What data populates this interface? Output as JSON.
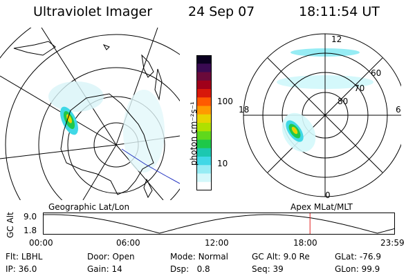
{
  "header": {
    "title": "Ultraviolet Imager",
    "date": "24 Sep 07",
    "time": "18:11:54 UT"
  },
  "colorbar": {
    "unit_label": "photon cm⁻²s⁻¹",
    "ticks": [
      "100",
      "10"
    ],
    "colors": [
      "#0b0020",
      "#3a0a52",
      "#6a0a3a",
      "#a0001a",
      "#d8180a",
      "#ff5a00",
      "#ff9a00",
      "#e8d400",
      "#b0e000",
      "#60d81c",
      "#1ec84a",
      "#1cc8b0",
      "#40d8e6",
      "#96ecf4",
      "#d4f8fb",
      "#ffffff"
    ]
  },
  "geo_map": {
    "label": "Geographic Lat/Lon"
  },
  "apex_map": {
    "label": "Apex MLat/MLT",
    "mlt_labels": {
      "top": "12",
      "bottom": "0",
      "left": "18",
      "right": "6"
    },
    "lat_labels": [
      "60",
      "70",
      "80"
    ]
  },
  "timeline": {
    "ylabel": "GC Alt",
    "yticks": [
      "9.0",
      "1.8"
    ],
    "xticks": [
      "00:00",
      "06:00",
      "12:00",
      "18:00",
      "23:59"
    ],
    "marker_time": "18:11:54"
  },
  "info": {
    "row1": [
      {
        "label": "Flt:",
        "value": "LBHL"
      },
      {
        "label": "Door:",
        "value": "Open"
      },
      {
        "label": "Mode:",
        "value": "Normal"
      },
      {
        "label": "GC Alt:",
        "value": "9.0 Re"
      },
      {
        "label": "GLat:",
        "value": "-76.9"
      }
    ],
    "row2": [
      {
        "label": "IP:",
        "value": "36.0"
      },
      {
        "label": "Gain:",
        "value": "14"
      },
      {
        "label": "Dsp:",
        "value": "0.8"
      },
      {
        "label": "Seq:",
        "value": "39"
      },
      {
        "label": "GLon:",
        "value": "99.9"
      }
    ]
  }
}
